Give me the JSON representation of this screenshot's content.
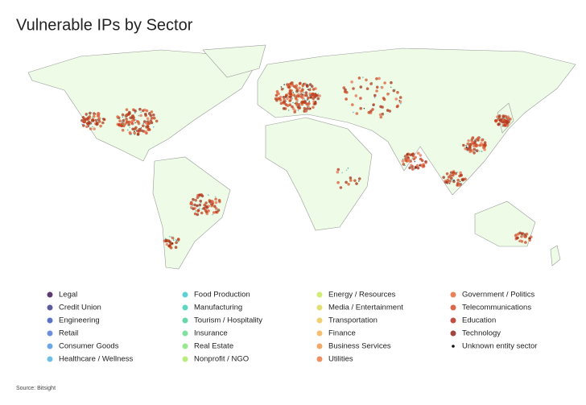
{
  "title": "Vulnerable IPs by Sector",
  "legend": [
    {
      "label": "Legal",
      "color": "#5b3a6e"
    },
    {
      "label": "Credit Union",
      "color": "#5a5a9e"
    },
    {
      "label": "Engineering",
      "color": "#5a72c8"
    },
    {
      "label": "Retail",
      "color": "#6a8fe0"
    },
    {
      "label": "Consumer Goods",
      "color": "#6aa6e8"
    },
    {
      "label": "Healthcare / Wellness",
      "color": "#6cc0e8"
    },
    {
      "label": "Food Production",
      "color": "#5fd0d8"
    },
    {
      "label": "Manufacturing",
      "color": "#5fd6c0"
    },
    {
      "label": "Tourism / Hospitality",
      "color": "#66d8a8"
    },
    {
      "label": "Insurance",
      "color": "#80e0a0"
    },
    {
      "label": "Real Estate",
      "color": "#98e890"
    },
    {
      "label": "Nonprofit / NGO",
      "color": "#b8ee80"
    },
    {
      "label": "Energy / Resources",
      "color": "#d0ee70"
    },
    {
      "label": "Media / Entertainment",
      "color": "#e0e070"
    },
    {
      "label": "Transportation",
      "color": "#f0d070"
    },
    {
      "label": "Finance",
      "color": "#f4c070"
    },
    {
      "label": "Business Services",
      "color": "#f4a868"
    },
    {
      "label": "Utilities",
      "color": "#f09060"
    },
    {
      "label": "Government / Politics",
      "color": "#e88058"
    },
    {
      "label": "Telecommunications",
      "color": "#d86848"
    },
    {
      "label": "Education",
      "color": "#c05040"
    },
    {
      "label": "Technology",
      "color": "#a04840"
    },
    {
      "label": "Unknown entity sector",
      "color": "#111111"
    }
  ],
  "source": "Source: Bitsight"
}
